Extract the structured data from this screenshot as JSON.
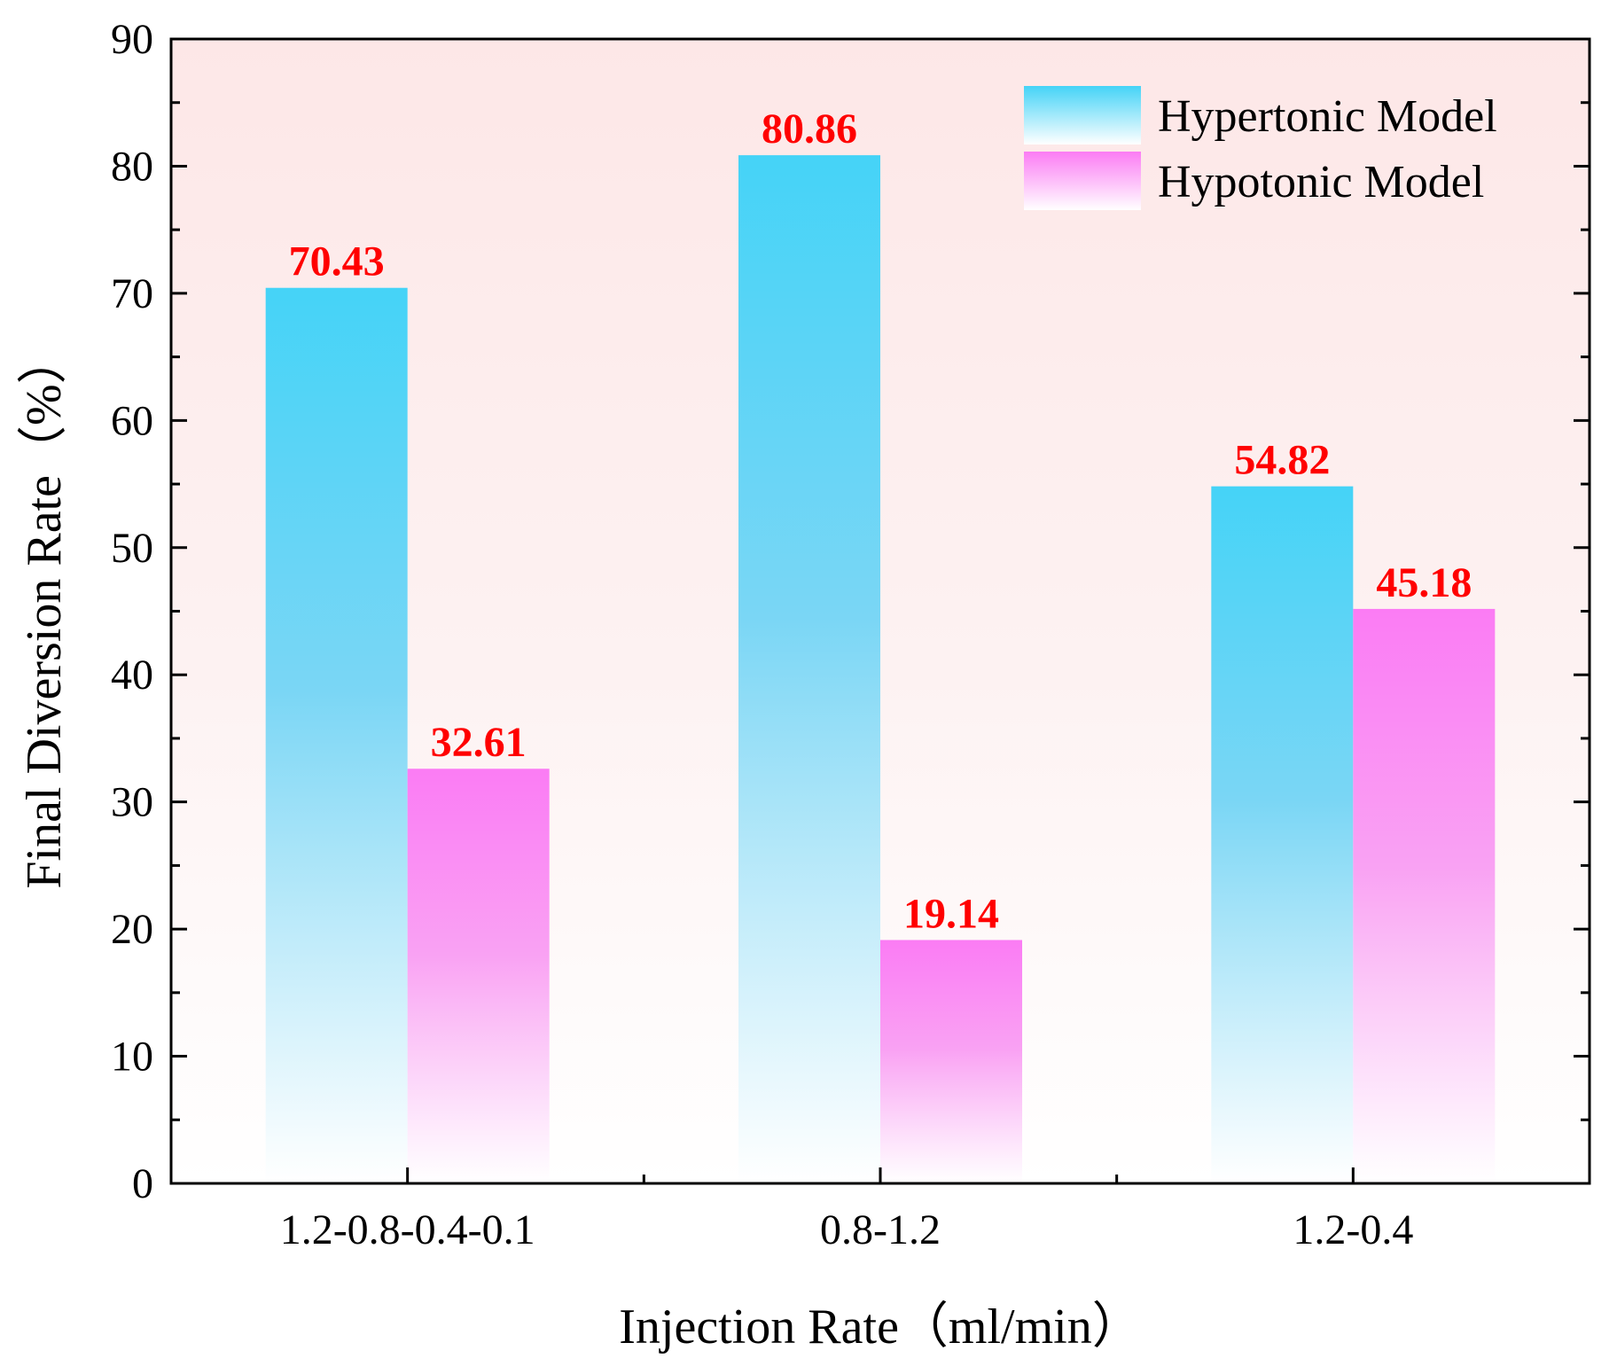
{
  "chart_data": {
    "type": "bar",
    "title": "",
    "xlabel": "Injection Rate（ml/min）",
    "ylabel": "Final Diversion Rate（%）",
    "categories": [
      "1.2-0.8-0.4-0.1",
      "0.8-1.2",
      "1.2-0.4"
    ],
    "series": [
      {
        "name": "Hypertonic Model",
        "values": [
          70.43,
          80.86,
          54.82
        ],
        "labels": [
          "70.43",
          "80.86",
          "54.82"
        ],
        "color": "#45d3f7"
      },
      {
        "name": "Hypotonic Model",
        "values": [
          32.61,
          19.14,
          45.18
        ],
        "labels": [
          "32.61",
          "19.14",
          "45.18"
        ],
        "color": "#fb7cf4"
      }
    ],
    "ylim": [
      0,
      90
    ],
    "yticks": [
      0,
      10,
      20,
      30,
      40,
      50,
      60,
      70,
      80,
      90
    ],
    "ytick_labels": [
      "0",
      "10",
      "20",
      "30",
      "40",
      "50",
      "60",
      "70",
      "80",
      "90"
    ],
    "grid": false,
    "legend_position": "top-right",
    "data_label_color": "#ff0000",
    "background_tint": "#fde7e7"
  }
}
